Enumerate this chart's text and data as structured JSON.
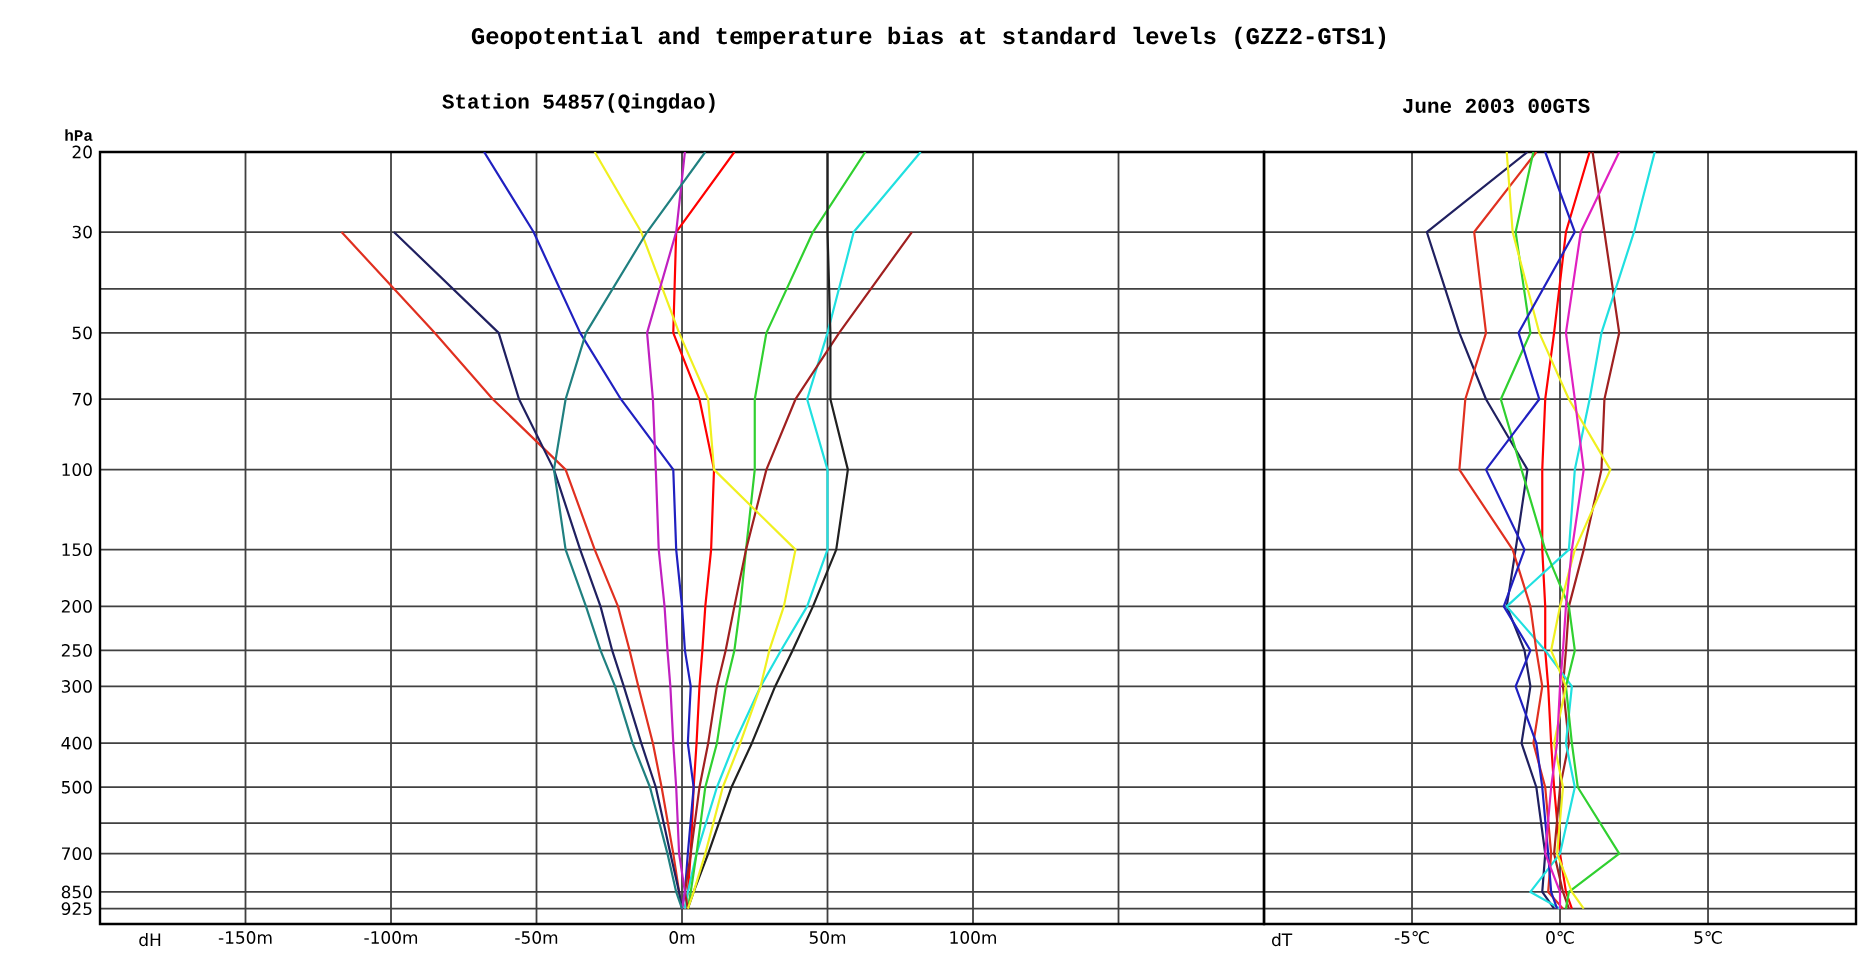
{
  "chart_data": [
    {
      "type": "line",
      "title": "Geopotential and temperature bias at standard levels (GZZ2-GTS1)",
      "subtitle": "Station 54857(Qingdao)",
      "xlabel": "dH",
      "ylabel": "hPa",
      "log": "y",
      "grid": true,
      "xlim": [
        -200,
        200
      ],
      "ylim": [
        1000,
        20
      ],
      "xticks": [
        {
          "value": -150,
          "label": "-150m"
        },
        {
          "value": -100,
          "label": "-100m"
        },
        {
          "value": -50,
          "label": "-50m"
        },
        {
          "value": 0,
          "label": "0m"
        },
        {
          "value": 50,
          "label": "50m"
        },
        {
          "value": 100,
          "label": "100m"
        },
        {
          "value": 150,
          "label": null
        }
      ],
      "yticks": [
        20,
        30,
        {
          "value": 40,
          "label": null
        },
        50,
        70,
        100,
        150,
        200,
        250,
        300,
        400,
        500,
        {
          "value": 600,
          "label": null
        },
        700,
        850,
        925
      ],
      "series": [
        {
          "color": "#ff0000",
          "x": [
            18,
            -2,
            -3,
            6,
            11,
            10,
            8,
            7,
            6,
            5,
            4,
            3,
            2,
            1
          ],
          "values": [
            20,
            30,
            50,
            70,
            100,
            150,
            200,
            250,
            300,
            400,
            500,
            700,
            850,
            925
          ]
        },
        {
          "color": "#e03020",
          "x": [
            -117,
            -85,
            -65,
            -40,
            -30,
            -22,
            -18,
            -15,
            -10,
            -7,
            -3,
            -1,
            0
          ],
          "values": [
            30,
            50,
            70,
            100,
            150,
            200,
            250,
            300,
            400,
            500,
            700,
            850,
            925
          ]
        },
        {
          "color": "#202060",
          "x": [
            -99,
            -63,
            -56,
            -44,
            -35,
            -28,
            -24,
            -20,
            -14,
            -9,
            -4,
            -1,
            0
          ],
          "values": [
            30,
            50,
            70,
            100,
            150,
            200,
            250,
            300,
            400,
            500,
            700,
            850,
            925
          ]
        },
        {
          "color": "#2020c0",
          "x": [
            -68,
            -51,
            -35,
            -21,
            -3,
            -2,
            0,
            1,
            3,
            2,
            4,
            2,
            1,
            0
          ],
          "values": [
            20,
            30,
            50,
            70,
            100,
            150,
            200,
            250,
            300,
            400,
            500,
            700,
            850,
            925
          ]
        },
        {
          "color": "#20e0e0",
          "x": [
            82,
            59,
            50,
            43,
            50,
            50,
            43,
            34,
            27,
            18,
            12,
            5,
            2,
            1
          ],
          "values": [
            20,
            30,
            50,
            70,
            100,
            150,
            200,
            250,
            300,
            400,
            500,
            700,
            850,
            925
          ]
        },
        {
          "color": "#30d030",
          "x": [
            63,
            45,
            29,
            25,
            25,
            22,
            20,
            18,
            15,
            12,
            8,
            5,
            3,
            2
          ],
          "values": [
            20,
            30,
            50,
            70,
            100,
            150,
            200,
            250,
            300,
            400,
            500,
            700,
            850,
            925
          ]
        },
        {
          "color": "#a02020",
          "x": [
            79,
            54,
            39,
            29,
            22,
            18,
            15,
            12,
            9,
            6,
            3,
            1,
            2
          ],
          "values": [
            30,
            50,
            70,
            100,
            150,
            200,
            250,
            300,
            400,
            500,
            700,
            850,
            925
          ]
        },
        {
          "color": "#202020",
          "x": [
            50,
            50,
            51,
            51,
            57,
            53,
            45,
            38,
            32,
            24,
            17,
            9,
            4,
            2
          ],
          "values": [
            20,
            30,
            50,
            70,
            100,
            150,
            200,
            250,
            300,
            400,
            500,
            700,
            850,
            925
          ]
        },
        {
          "color": "#f0f020",
          "x": [
            -30,
            -14,
            -1,
            9,
            11,
            39,
            35,
            30,
            27,
            20,
            14,
            8,
            4,
            2
          ],
          "values": [
            20,
            30,
            50,
            70,
            100,
            150,
            200,
            250,
            300,
            400,
            500,
            700,
            850,
            925
          ]
        },
        {
          "color": "#c020c0",
          "x": [
            1,
            -2,
            -12,
            -10,
            -9,
            -8,
            -6,
            -5,
            -4,
            -3,
            -2,
            -1,
            1,
            0
          ],
          "values": [
            20,
            30,
            50,
            70,
            100,
            150,
            200,
            250,
            300,
            400,
            500,
            700,
            850,
            925
          ]
        },
        {
          "color": "#208080",
          "x": [
            8,
            -12,
            -33,
            -40,
            -44,
            -40,
            -33,
            -28,
            -23,
            -17,
            -11,
            -5,
            -2,
            0
          ],
          "values": [
            20,
            30,
            50,
            70,
            100,
            150,
            200,
            250,
            300,
            400,
            500,
            700,
            850,
            925
          ]
        }
      ]
    },
    {
      "type": "line",
      "subtitle": "June 2003 00GTS",
      "xlabel": "dT",
      "log": "y",
      "grid": true,
      "tick_labels": "x",
      "xlim": [
        -10,
        10
      ],
      "ylim": [
        1000,
        20
      ],
      "xticks": [
        {
          "value": -5,
          "label": "-5℃"
        },
        {
          "value": 0,
          "label": "0℃"
        },
        {
          "value": 5,
          "label": "5℃"
        }
      ],
      "yticks": [
        20,
        30,
        40,
        50,
        70,
        100,
        150,
        200,
        250,
        300,
        400,
        500,
        600,
        700,
        850,
        925
      ],
      "series": [
        {
          "color": "#ff0000",
          "x": [
            1.0,
            0.2,
            -0.2,
            -0.5,
            -0.6,
            -0.6,
            -0.5,
            -0.5,
            -0.4,
            -0.3,
            -0.2,
            0,
            0.2,
            0.4
          ],
          "values": [
            20,
            30,
            50,
            70,
            100,
            150,
            200,
            250,
            300,
            400,
            500,
            700,
            850,
            925
          ]
        },
        {
          "color": "#202060",
          "x": [
            -1.1,
            -4.5,
            -3.4,
            -2.5,
            -1.1,
            -1.5,
            -1.8,
            -1.2,
            -1.0,
            -1.3,
            -0.8,
            -0.5,
            -0.6,
            -0.2
          ],
          "values": [
            20,
            30,
            50,
            70,
            100,
            150,
            200,
            250,
            300,
            400,
            500,
            700,
            850,
            925
          ]
        },
        {
          "color": "#a02020",
          "x": [
            1.1,
            1.5,
            2.0,
            1.5,
            1.4,
            0.8,
            0.3,
            0.2,
            0.1,
            0.3,
            0,
            -0.2,
            0.1,
            0.3
          ],
          "values": [
            20,
            30,
            50,
            70,
            100,
            150,
            200,
            250,
            300,
            400,
            500,
            700,
            850,
            925
          ]
        },
        {
          "color": "#20e0e0",
          "x": [
            3.2,
            2.5,
            1.4,
            1.0,
            0.5,
            0.3,
            -1.8,
            -0.5,
            0.4,
            0.2,
            0.5,
            0,
            -1.0,
            0
          ],
          "values": [
            20,
            30,
            50,
            70,
            100,
            150,
            200,
            250,
            300,
            400,
            500,
            700,
            850,
            925
          ]
        },
        {
          "color": "#e03020",
          "x": [
            -0.8,
            -2.9,
            -2.5,
            -3.2,
            -3.4,
            -1.6,
            -1.0,
            -0.8,
            -0.6,
            -0.9,
            -0.5,
            -0.3,
            -0.4,
            0.1
          ],
          "values": [
            20,
            30,
            50,
            70,
            100,
            150,
            200,
            250,
            300,
            400,
            500,
            700,
            850,
            925
          ]
        },
        {
          "color": "#30d030",
          "x": [
            -0.9,
            -1.5,
            -1.0,
            -2.0,
            -1.3,
            -0.5,
            0.3,
            0.5,
            0.2,
            0.4,
            0.6,
            2.0,
            0.3,
            0.2
          ],
          "values": [
            20,
            30,
            50,
            70,
            100,
            150,
            200,
            250,
            300,
            400,
            500,
            700,
            850,
            925
          ]
        },
        {
          "color": "#f0f020",
          "x": [
            -1.8,
            -1.6,
            -0.7,
            0.3,
            1.7,
            0.5,
            0,
            -0.3,
            0.2,
            -0.2,
            0.1,
            -0.1,
            0.4,
            0.8
          ],
          "values": [
            20,
            30,
            50,
            70,
            100,
            150,
            200,
            250,
            300,
            400,
            500,
            700,
            850,
            925
          ]
        },
        {
          "color": "#2020c0",
          "x": [
            -0.5,
            0.5,
            -1.4,
            -0.7,
            -2.5,
            -1.2,
            -1.9,
            -1.0,
            -1.5,
            -0.8,
            -0.6,
            -0.4,
            -0.3,
            -0.1
          ],
          "values": [
            20,
            30,
            50,
            70,
            100,
            150,
            200,
            250,
            300,
            400,
            500,
            700,
            850,
            925
          ]
        },
        {
          "color": "#e020c0",
          "x": [
            2.0,
            0.7,
            0.2,
            0.5,
            0.8,
            0.4,
            0.2,
            0.1,
            0,
            -0.1,
            -0.3,
            -0.5,
            0,
            0
          ],
          "values": [
            20,
            30,
            50,
            70,
            100,
            150,
            200,
            250,
            300,
            400,
            500,
            700,
            850,
            925
          ]
        }
      ]
    }
  ]
}
